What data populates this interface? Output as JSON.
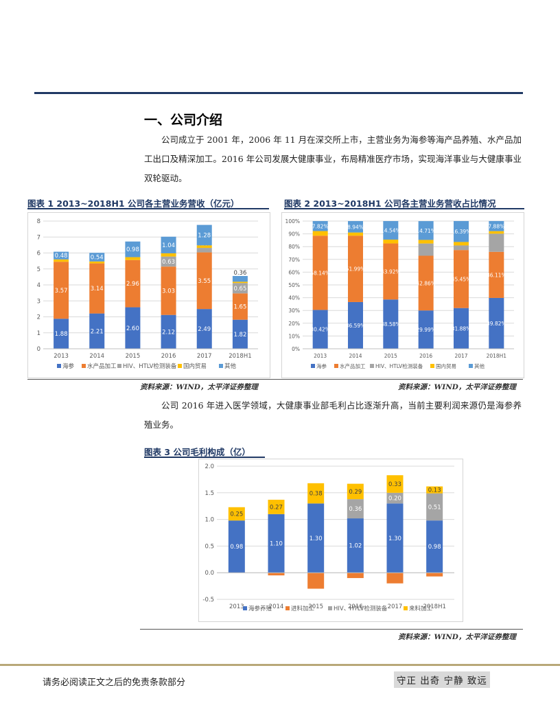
{
  "section": {
    "title": "一、公司介绍"
  },
  "paragraphs": {
    "intro": "公司成立于 2001 年，2006 年 11 月在深交所上市，主营业务为海参等海产品养殖、水产品加工出口及精深加工。2016 年公司发展大健康事业，布局精准医疗市场，实现海洋事业与大健康事业双轮驱动。",
    "health": "公司 2016 年进入医学领域，大健康事业部毛利占比逐渐升高，当前主要利润来源仍是海参养殖业务。"
  },
  "figures": {
    "fig1": {
      "title": "图表 1 2013~2018H1 公司各主营业务营收（亿元）"
    },
    "fig2": {
      "title": "图表 2 2013~2018H1 公司各主营业务营收占比情况"
    },
    "fig3": {
      "title": "图表 3 公司毛利构成（亿）"
    }
  },
  "sources": {
    "fig12": "资料来源：WIND，太平洋证券整理",
    "fig3": "资料来源：WIND，太平洋证券整理"
  },
  "footer": {
    "disclaimer": "请务必阅读正文之后的免责条款部分",
    "slogan": "守正 出奇 宁静 致远"
  },
  "chart_data": [
    {
      "type": "bar",
      "stacked": true,
      "title": "",
      "xlabel": "",
      "ylabel": "",
      "categories": [
        "2013",
        "2014",
        "2015",
        "2016",
        "2017",
        "2018H1"
      ],
      "ylim": [
        0,
        8
      ],
      "yticks": [
        "0",
        "1",
        "2",
        "3",
        "4",
        "5",
        "6",
        "7",
        "8"
      ],
      "grid": true,
      "legend": "bottom",
      "series": [
        {
          "name": "海参",
          "color": "#4472c4",
          "values": [
            1.88,
            2.21,
            2.6,
            2.12,
            2.49,
            1.82
          ],
          "labels": [
            "1.88",
            "2.21",
            "2.60",
            "2.12",
            "2.49",
            "1.82"
          ]
        },
        {
          "name": "水产品加工",
          "color": "#ed7d31",
          "values": [
            3.57,
            3.14,
            2.96,
            3.03,
            3.55,
            1.65
          ],
          "labels": [
            "3.57",
            "3.14",
            "2.96",
            "3.03",
            "3.55",
            "1.65"
          ]
        },
        {
          "name": "HIV、HTLV检测装备",
          "color": "#a5a5a5",
          "values": [
            0,
            0,
            0,
            0.63,
            0.28,
            0.65
          ],
          "labels": [
            "",
            "",
            "",
            "0.63",
            "0.28",
            "0.65"
          ]
        },
        {
          "name": "国内贸易",
          "color": "#ffc000",
          "values": [
            0.15,
            0.12,
            0.18,
            0.2,
            0.16,
            0.08
          ],
          "labels": [
            "",
            "",
            "",
            "",
            "",
            ""
          ]
        },
        {
          "name": "其他",
          "color": "#5b9bd5",
          "values": [
            0.48,
            0.54,
            0.98,
            1.04,
            1.28,
            0.36
          ],
          "labels": [
            "0.48",
            "0.54",
            "0.98",
            "1.04",
            "1.28",
            "0.36"
          ]
        }
      ]
    },
    {
      "type": "bar",
      "stacked": true,
      "percent": true,
      "title": "",
      "xlabel": "",
      "ylabel": "",
      "categories": [
        "2013",
        "2014",
        "2015",
        "2016",
        "2017",
        "2018H1"
      ],
      "ylim": [
        0,
        100
      ],
      "yticks": [
        "0%",
        "10%",
        "20%",
        "30%",
        "40%",
        "50%",
        "60%",
        "70%",
        "80%",
        "90%",
        "100%"
      ],
      "grid": true,
      "legend": "bottom",
      "series": [
        {
          "name": "海参",
          "color": "#4472c4",
          "values": [
            30.42,
            36.59,
            38.58,
            29.99,
            31.88,
            39.82
          ],
          "labels": [
            "30.42%",
            "36.59%",
            "38.58%",
            "29.99%",
            "31.88%",
            "39.82%"
          ]
        },
        {
          "name": "水产品加工",
          "color": "#ed7d31",
          "values": [
            58.14,
            51.99,
            43.92,
            42.86,
            45.45,
            36.11
          ],
          "labels": [
            "58.14%",
            "51.99%",
            "43.92%",
            "42.86%",
            "45.45%",
            "36.11%"
          ]
        },
        {
          "name": "HIV、HTLV检测装备",
          "color": "#a5a5a5",
          "values": [
            0,
            0,
            0,
            9.6,
            3.6,
            14.2
          ],
          "labels": [
            "",
            "",
            "",
            "",
            "",
            ""
          ]
        },
        {
          "name": "国内贸易",
          "color": "#ffc000",
          "values": [
            3.62,
            2.48,
            3.0,
            2.8,
            2.7,
            2.0
          ],
          "labels": [
            "",
            "",
            "",
            "",
            "",
            ""
          ]
        },
        {
          "name": "其他",
          "color": "#5b9bd5",
          "values": [
            7.82,
            8.94,
            14.5,
            14.71,
            16.39,
            7.88
          ],
          "labels": [
            "7.82%",
            "8.94%",
            "14.54%",
            "14.71%",
            "16.39%",
            "7.88%"
          ]
        }
      ]
    },
    {
      "type": "bar",
      "stacked": true,
      "title": "",
      "xlabel": "",
      "ylabel": "",
      "categories": [
        "2013",
        "2014",
        "2015",
        "2016",
        "2017",
        "2018H1"
      ],
      "ylim": [
        -0.5,
        2.0
      ],
      "yticks": [
        "-0.5",
        "0.0",
        "0.5",
        "1.0",
        "1.5",
        "2.0"
      ],
      "grid": true,
      "legend": "bottom",
      "series": [
        {
          "name": "海参养殖",
          "color": "#4472c4",
          "values": [
            0.98,
            1.1,
            1.3,
            1.02,
            1.3,
            0.98
          ],
          "labels": [
            "0.98",
            "1.10",
            "1.30",
            "1.02",
            "1.30",
            "0.98"
          ]
        },
        {
          "name": "进料加工",
          "color": "#ed7d31",
          "values": [
            0,
            -0.05,
            -0.3,
            -0.1,
            -0.2,
            -0.07
          ],
          "labels": [
            "",
            "",
            "",
            "",
            "",
            ""
          ]
        },
        {
          "name": "HIV、HTLV检测装备",
          "color": "#a5a5a5",
          "values": [
            0,
            0,
            0,
            0.36,
            0.2,
            0.51
          ],
          "labels": [
            "",
            "",
            "",
            "0.36",
            "0.20",
            "0.51"
          ]
        },
        {
          "name": "来料加工",
          "color": "#ffc000",
          "values": [
            0.25,
            0.27,
            0.38,
            0.29,
            0.33,
            0.13
          ],
          "labels": [
            "0.25",
            "0.27",
            "0.38",
            "0.29",
            "0.33",
            "0.13"
          ]
        }
      ]
    }
  ]
}
